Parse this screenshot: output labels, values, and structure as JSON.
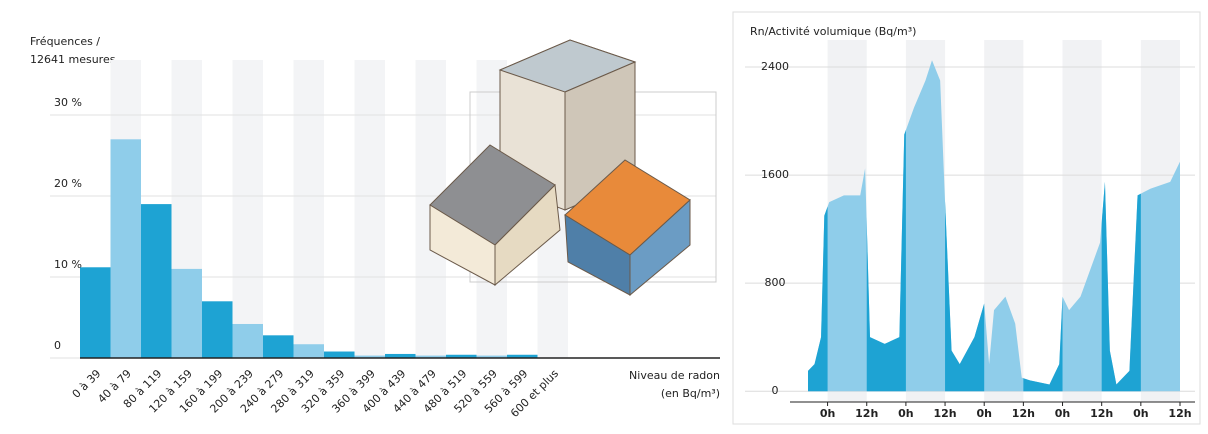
{
  "chart_data": [
    {
      "type": "bar",
      "title": [
        "Fréquences /",
        "12641 mesures"
      ],
      "xlabel": [
        "Niveau de radon",
        "(en Bq/m³)"
      ],
      "categories": [
        "0 à 39",
        "40 à 79",
        "80 à 119",
        "120 à 159",
        "160 à 199",
        "200 à 239",
        "240 à 279",
        "280 à 319",
        "320 à 359",
        "360 à 399",
        "400 à 439",
        "440 à 479",
        "480 à 519",
        "520 à 559",
        "560 à 599",
        "600 et plus"
      ],
      "values": [
        11.2,
        27,
        19,
        11,
        7,
        4.2,
        2.8,
        1.7,
        0.8,
        0.3,
        0.5,
        0.3,
        0.4,
        0.3,
        0.4,
        0
      ],
      "colors": [
        "#1ea3d3",
        "#8fcdea"
      ],
      "ylim": [
        0,
        30
      ],
      "yticks": [
        0,
        {
          "value": 10,
          "label": "10 %"
        },
        {
          "value": 20,
          "label": "20 %"
        },
        {
          "value": 30,
          "label": "30 %"
        }
      ]
    },
    {
      "type": "area",
      "title": "Rn/Activité volumique (Bq/m³)",
      "x": [
        -6,
        -4,
        -2,
        -1,
        0.5,
        5,
        10,
        11.5,
        13,
        17.5,
        22,
        23.5,
        26.5,
        30,
        32,
        34.5,
        36,
        38,
        40.5,
        45,
        48,
        49.5,
        51,
        54.5,
        57.5,
        59.5,
        62,
        68,
        71,
        72,
        74,
        77.5,
        80.5,
        83.5,
        85,
        86.5,
        88.5,
        92.5,
        95,
        99,
        105,
        108
      ],
      "values": [
        150,
        200,
        400,
        1300,
        1400,
        1450,
        1450,
        1650,
        400,
        350,
        400,
        1900,
        2100,
        2300,
        2450,
        2300,
        1400,
        300,
        200,
        400,
        650,
        200,
        600,
        700,
        500,
        100,
        80,
        50,
        200,
        700,
        600,
        700,
        900,
        1100,
        1550,
        300,
        50,
        150,
        1450,
        1500,
        1550,
        1700
      ],
      "colors": [
        "#1ea3d3",
        "#8fcdea"
      ],
      "xlim": [
        -6,
        108
      ],
      "xticks": [
        {
          "value": 0,
          "label": "0h"
        },
        {
          "value": 12,
          "label": "12h"
        },
        {
          "value": 24,
          "label": "0h"
        },
        {
          "value": 36,
          "label": "12h"
        },
        {
          "value": 48,
          "label": "0h"
        },
        {
          "value": 60,
          "label": "12h"
        },
        {
          "value": 72,
          "label": "0h"
        },
        {
          "value": 84,
          "label": "12h"
        },
        {
          "value": 96,
          "label": "0h"
        },
        {
          "value": 108,
          "label": "12h"
        }
      ],
      "ylim": [
        -80,
        2600
      ],
      "yticks": [
        0,
        800,
        1600,
        2400
      ]
    }
  ]
}
